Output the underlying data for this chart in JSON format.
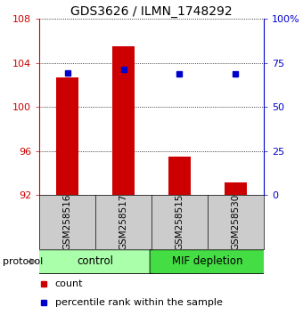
{
  "title": "GDS3626 / ILMN_1748292",
  "samples": [
    "GSM258516",
    "GSM258517",
    "GSM258515",
    "GSM258530"
  ],
  "bar_values": [
    102.7,
    105.5,
    95.5,
    93.2
  ],
  "bar_base": 92,
  "blue_values": [
    103.1,
    103.4,
    103.05,
    103.05
  ],
  "ylim_left": [
    92,
    108
  ],
  "ylim_right": [
    0,
    100
  ],
  "yticks_left": [
    92,
    96,
    100,
    104,
    108
  ],
  "yticks_right": [
    0,
    25,
    50,
    75,
    100
  ],
  "bar_color": "#cc0000",
  "blue_color": "#0000cc",
  "groups": [
    {
      "label": "control",
      "indices": [
        0,
        1
      ],
      "color": "#aaffaa"
    },
    {
      "label": "MIF depletion",
      "indices": [
        2,
        3
      ],
      "color": "#44dd44"
    }
  ],
  "tick_bg_color": "#cccccc",
  "protocol_label": "protocol",
  "legend_count": "count",
  "legend_percentile": "percentile rank within the sample",
  "background_color": "#ffffff",
  "plot_bg_color": "#ffffff"
}
